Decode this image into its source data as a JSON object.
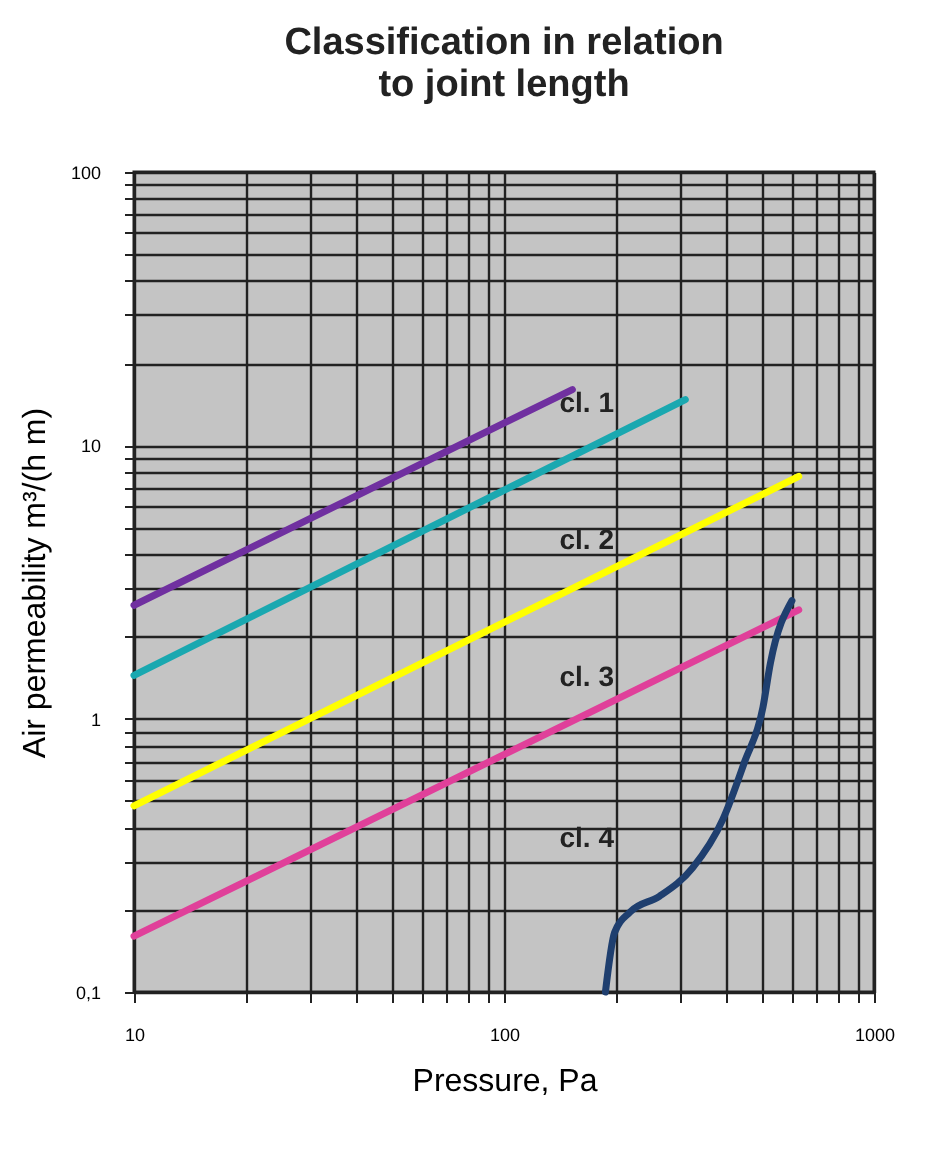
{
  "chart_data": {
    "type": "line",
    "title": "Classification in relation to joint length",
    "xlabel": "Pressure, Pa",
    "ylabel": "Air permeability m³/(h m)",
    "log": "xy",
    "grid": true,
    "line_style": "solid",
    "marker": "none",
    "xlim": [
      10,
      1000
    ],
    "ylim": [
      0.1,
      100
    ],
    "xticks": [
      10,
      {
        "value": 20,
        "label": null
      },
      {
        "value": 30,
        "label": null
      },
      {
        "value": 40,
        "label": null
      },
      {
        "value": 50,
        "label": null
      },
      {
        "value": 60,
        "label": null
      },
      {
        "value": 70,
        "label": null
      },
      {
        "value": 80,
        "label": null
      },
      {
        "value": 90,
        "label": null
      },
      100,
      {
        "value": 200,
        "label": null
      },
      {
        "value": 300,
        "label": null
      },
      {
        "value": 400,
        "label": null
      },
      {
        "value": 500,
        "label": null
      },
      {
        "value": 600,
        "label": null
      },
      {
        "value": 700,
        "label": null
      },
      {
        "value": 800,
        "label": null
      },
      {
        "value": 900,
        "label": null
      },
      1000
    ],
    "yticks": [
      {
        "value": 0.1,
        "label": "0,1"
      },
      {
        "value": 0.2,
        "label": null
      },
      {
        "value": 0.3,
        "label": null
      },
      {
        "value": 0.4,
        "label": null
      },
      {
        "value": 0.5,
        "label": null
      },
      {
        "value": 0.6,
        "label": null
      },
      {
        "value": 0.7,
        "label": null
      },
      {
        "value": 0.8,
        "label": null
      },
      {
        "value": 0.9,
        "label": null
      },
      1,
      {
        "value": 2,
        "label": null
      },
      {
        "value": 3,
        "label": null
      },
      {
        "value": 4,
        "label": null
      },
      {
        "value": 5,
        "label": null
      },
      {
        "value": 6,
        "label": null
      },
      {
        "value": 7,
        "label": null
      },
      {
        "value": 8,
        "label": null
      },
      {
        "value": 9,
        "label": null
      },
      10,
      {
        "value": 20,
        "label": null
      },
      {
        "value": 30,
        "label": null
      },
      {
        "value": 40,
        "label": null
      },
      {
        "value": 50,
        "label": null
      },
      {
        "value": 60,
        "label": null
      },
      {
        "value": 70,
        "label": null
      },
      {
        "value": 80,
        "label": null
      },
      {
        "value": 90,
        "label": null
      },
      100
    ],
    "series": [
      {
        "color": "#7030a0",
        "x": [
          10,
          153
        ],
        "values": [
          2.6,
          16
        ]
      },
      {
        "color": "#1aa8b0",
        "x": [
          10,
          309
        ],
        "values": [
          1.44,
          14.7
        ]
      },
      {
        "color": "#ffff00",
        "x": [
          10,
          626
        ],
        "values": [
          0.48,
          7.7
        ]
      },
      {
        "color": "#e0409a",
        "x": [
          10,
          626
        ],
        "values": [
          0.16,
          2.5
        ]
      },
      {
        "color": "#1f3f6f",
        "x": [
          188,
          199,
          219,
          263,
          323,
          391,
          446,
          501,
          525,
          600
        ],
        "values": [
          0.1,
          0.165,
          0.196,
          0.224,
          0.284,
          0.43,
          0.69,
          1.1,
          1.6,
          2.7
        ]
      }
    ],
    "annotations": [
      "cl. 1",
      "cl. 2",
      "cl. 3",
      "cl. 4"
    ]
  }
}
